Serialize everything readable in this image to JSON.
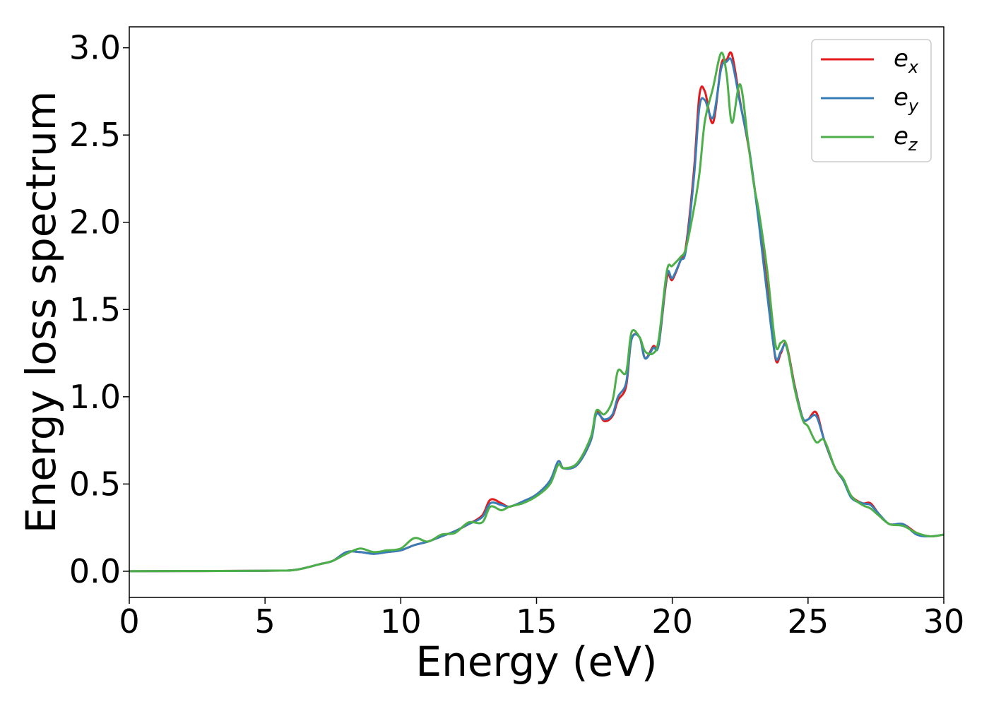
{
  "chart_data": {
    "type": "line",
    "title": "",
    "xlabel": "Energy (eV)",
    "ylabel": "Energy loss spectrum",
    "xlim": [
      0,
      30
    ],
    "ylim": [
      -0.15,
      3.12
    ],
    "xticks": [
      0,
      5,
      10,
      15,
      20,
      25,
      30
    ],
    "xtick_labels": [
      "0",
      "5",
      "10",
      "15",
      "20",
      "25",
      "30"
    ],
    "yticks": [
      0.0,
      0.5,
      1.0,
      1.5,
      2.0,
      2.5,
      3.0
    ],
    "ytick_labels": [
      "0.0",
      "0.5",
      "1.0",
      "1.5",
      "2.0",
      "2.5",
      "3.0"
    ],
    "grid": false,
    "legend_position": "top-right",
    "series": [
      {
        "name": "e_x",
        "label_base": "e",
        "label_sub": "x",
        "color": "#e41a1c",
        "x": [
          0,
          5,
          6,
          6.5,
          7,
          7.5,
          8,
          8.5,
          9,
          9.5,
          10,
          10.5,
          11,
          11.5,
          12,
          12.5,
          13,
          13.3,
          13.7,
          14,
          14.5,
          15,
          15.5,
          15.8,
          16,
          16.5,
          17,
          17.2,
          17.5,
          17.8,
          18,
          18.3,
          18.5,
          18.8,
          19,
          19.3,
          19.5,
          19.8,
          20,
          20.3,
          20.5,
          20.8,
          21,
          21.2,
          21.5,
          21.8,
          22,
          22.2,
          22.5,
          22.8,
          23,
          23.2,
          23.5,
          23.8,
          24,
          24.2,
          24.5,
          24.8,
          25,
          25.3,
          25.6,
          26,
          26.3,
          26.6,
          27,
          27.3,
          27.6,
          28,
          28.5,
          29,
          29.5,
          30
        ],
        "y": [
          0.0,
          0.003,
          0.006,
          0.02,
          0.04,
          0.06,
          0.11,
          0.11,
          0.1,
          0.11,
          0.12,
          0.15,
          0.17,
          0.2,
          0.23,
          0.27,
          0.32,
          0.41,
          0.39,
          0.37,
          0.4,
          0.44,
          0.52,
          0.63,
          0.59,
          0.61,
          0.75,
          0.91,
          0.86,
          0.89,
          0.98,
          1.06,
          1.33,
          1.34,
          1.22,
          1.29,
          1.3,
          1.68,
          1.67,
          1.78,
          1.86,
          2.3,
          2.73,
          2.75,
          2.57,
          2.9,
          2.93,
          2.96,
          2.69,
          2.44,
          2.23,
          2.0,
          1.62,
          1.22,
          1.25,
          1.3,
          1.07,
          0.88,
          0.87,
          0.91,
          0.75,
          0.59,
          0.52,
          0.43,
          0.39,
          0.39,
          0.33,
          0.27,
          0.27,
          0.22,
          0.2,
          0.21
        ]
      },
      {
        "name": "e_y",
        "label_base": "e",
        "label_sub": "y",
        "color": "#377eb8",
        "x": [
          0,
          5,
          6,
          6.5,
          7,
          7.5,
          8,
          8.5,
          9,
          9.5,
          10,
          10.5,
          11,
          11.5,
          12,
          12.5,
          13,
          13.3,
          13.7,
          14,
          14.5,
          15,
          15.5,
          15.8,
          16,
          16.5,
          17,
          17.2,
          17.5,
          17.8,
          18,
          18.3,
          18.5,
          18.8,
          19,
          19.3,
          19.5,
          19.8,
          20,
          20.3,
          20.5,
          20.8,
          21,
          21.2,
          21.5,
          21.8,
          22,
          22.2,
          22.5,
          22.8,
          23,
          23.2,
          23.5,
          23.8,
          24,
          24.2,
          24.5,
          24.8,
          25,
          25.3,
          25.6,
          26,
          26.3,
          26.6,
          27,
          27.3,
          27.6,
          28,
          28.5,
          29,
          29.5,
          30
        ],
        "y": [
          0.0,
          0.003,
          0.006,
          0.02,
          0.04,
          0.06,
          0.11,
          0.11,
          0.1,
          0.11,
          0.12,
          0.15,
          0.17,
          0.2,
          0.23,
          0.27,
          0.31,
          0.39,
          0.38,
          0.37,
          0.4,
          0.44,
          0.52,
          0.63,
          0.59,
          0.61,
          0.75,
          0.9,
          0.87,
          0.9,
          1.0,
          1.08,
          1.33,
          1.34,
          1.22,
          1.28,
          1.3,
          1.7,
          1.68,
          1.78,
          1.84,
          2.26,
          2.66,
          2.7,
          2.6,
          2.88,
          2.92,
          2.92,
          2.68,
          2.45,
          2.23,
          1.98,
          1.58,
          1.23,
          1.26,
          1.29,
          1.06,
          0.88,
          0.87,
          0.89,
          0.75,
          0.59,
          0.52,
          0.42,
          0.39,
          0.38,
          0.33,
          0.27,
          0.27,
          0.21,
          0.2,
          0.21
        ]
      },
      {
        "name": "e_z",
        "label_base": "e",
        "label_sub": "z",
        "color": "#4daf4a",
        "x": [
          0,
          5,
          6,
          6.5,
          7,
          7.5,
          8,
          8.5,
          9,
          9.5,
          10,
          10.5,
          11,
          11.5,
          12,
          12.5,
          13,
          13.3,
          13.7,
          14,
          14.5,
          15,
          15.5,
          15.8,
          16,
          16.5,
          17,
          17.2,
          17.5,
          17.8,
          18,
          18.3,
          18.5,
          18.8,
          19,
          19.3,
          19.5,
          19.8,
          20,
          20.3,
          20.5,
          20.8,
          21,
          21.2,
          21.5,
          21.8,
          22,
          22.2,
          22.5,
          22.8,
          23,
          23.2,
          23.5,
          23.8,
          24,
          24.2,
          24.5,
          24.8,
          25,
          25.3,
          25.6,
          26,
          26.3,
          26.6,
          27,
          27.3,
          27.6,
          28,
          28.5,
          29,
          29.5,
          30
        ],
        "y": [
          0.0,
          0.003,
          0.006,
          0.02,
          0.04,
          0.06,
          0.1,
          0.13,
          0.11,
          0.12,
          0.13,
          0.19,
          0.17,
          0.21,
          0.22,
          0.28,
          0.28,
          0.37,
          0.35,
          0.37,
          0.39,
          0.43,
          0.5,
          0.61,
          0.59,
          0.62,
          0.77,
          0.92,
          0.9,
          0.98,
          1.15,
          1.14,
          1.37,
          1.34,
          1.26,
          1.25,
          1.33,
          1.72,
          1.75,
          1.8,
          1.85,
          2.08,
          2.28,
          2.58,
          2.77,
          2.97,
          2.85,
          2.57,
          2.79,
          2.45,
          2.22,
          2.05,
          1.72,
          1.3,
          1.31,
          1.3,
          1.05,
          0.87,
          0.83,
          0.74,
          0.75,
          0.59,
          0.53,
          0.43,
          0.38,
          0.36,
          0.32,
          0.27,
          0.26,
          0.22,
          0.2,
          0.21
        ]
      }
    ]
  }
}
